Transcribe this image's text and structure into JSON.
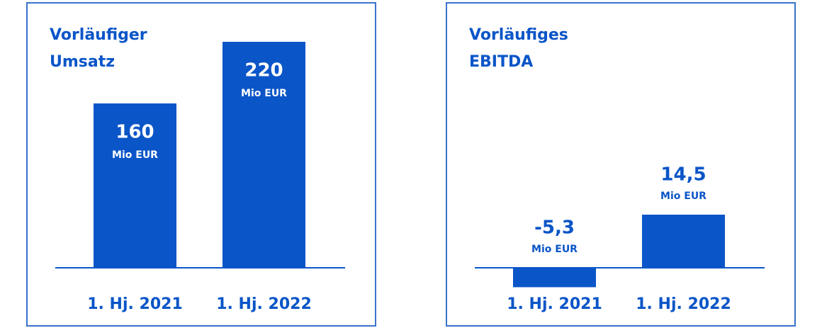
{
  "chart_data": [
    {
      "type": "bar",
      "title": [
        "Vorläufiger",
        "Umsatz"
      ],
      "categories": [
        "1. Hj. 2021",
        "1. Hj. 2022"
      ],
      "values": [
        160,
        220
      ],
      "value_unit": "Mio EUR",
      "label_position": "inside",
      "color": "#0a55c8"
    },
    {
      "type": "bar",
      "title": [
        "Vorläufiges",
        "EBITDA"
      ],
      "categories": [
        "1. Hj. 2021",
        "1. Hj. 2022"
      ],
      "values": [
        -5.3,
        14.5
      ],
      "value_labels": [
        "-5,3",
        "14,5"
      ],
      "value_unit": "Mio EUR",
      "label_position": "above",
      "color": "#0a55c8"
    }
  ]
}
